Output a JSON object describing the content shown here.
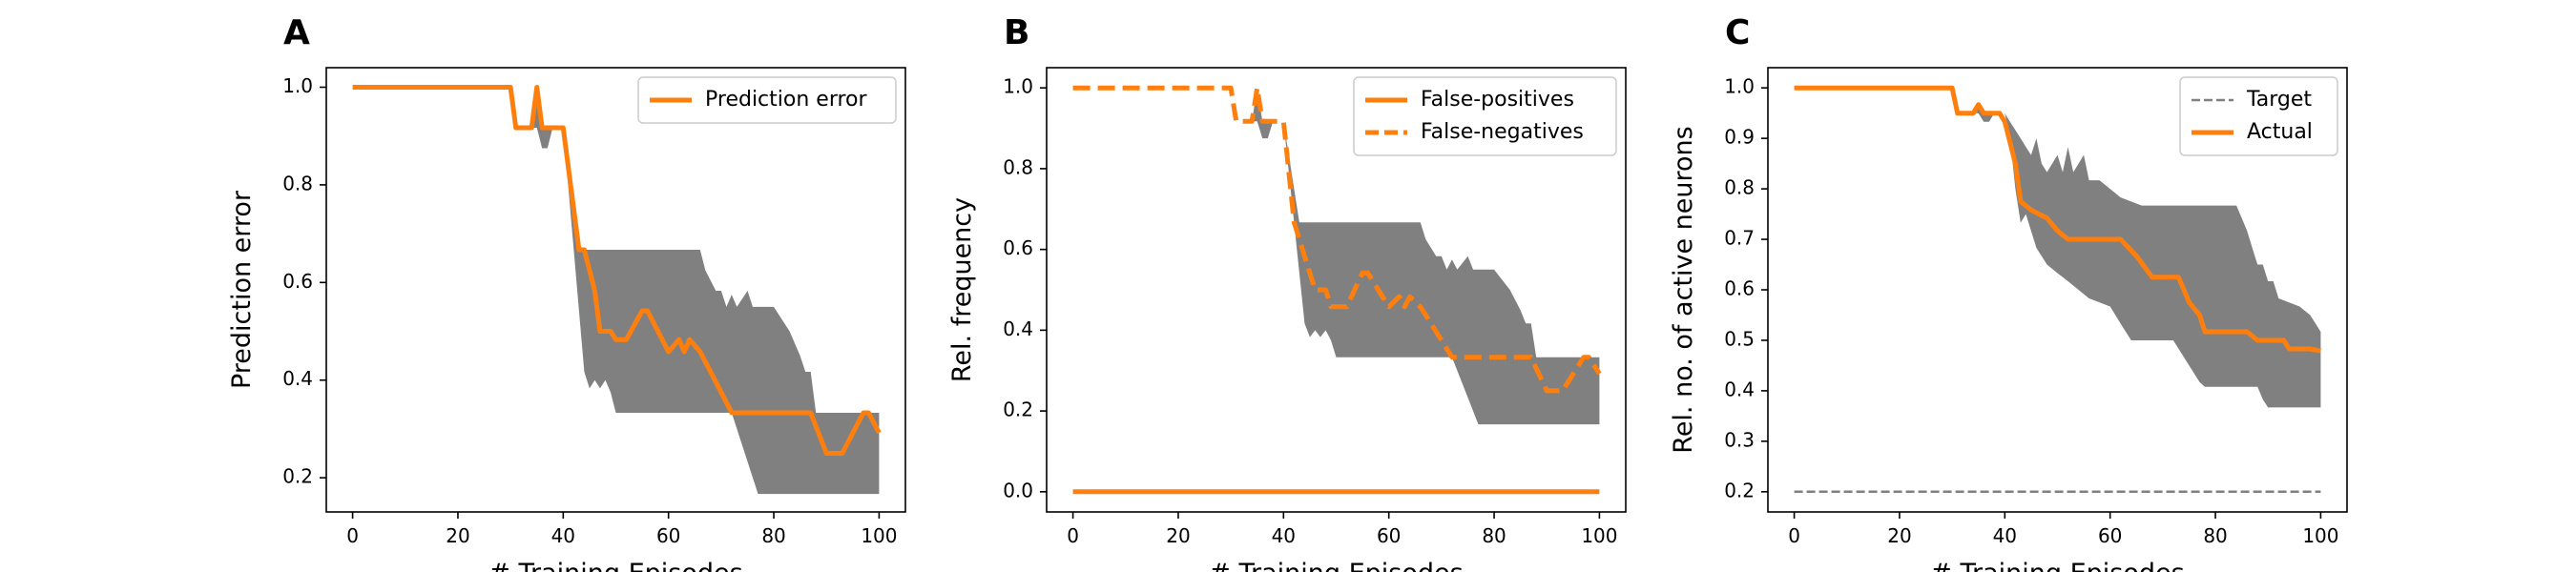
{
  "figure": {
    "panels": [
      {
        "letter": "A"
      },
      {
        "letter": "B"
      },
      {
        "letter": "C"
      }
    ]
  },
  "colors": {
    "orange": "#ff7f0e",
    "band": "#808080",
    "target": "#808080"
  },
  "chart_data": [
    {
      "type": "line",
      "xlabel": "# Training Episodes",
      "ylabel": "Prediction error",
      "xlim": [
        -5,
        105
      ],
      "ylim": [
        0.13,
        1.04
      ],
      "xticks": [
        0,
        20,
        40,
        60,
        80,
        100
      ],
      "yticks": [
        0.2,
        0.4,
        0.6,
        0.8,
        1.0
      ],
      "ytick_labels": [
        "0.2",
        "0.4",
        "0.6",
        "0.8",
        "1.0"
      ],
      "legend_position": "upper right",
      "series": [
        {
          "name": "Prediction error",
          "style": "solid",
          "points": [
            [
              0,
              1.0
            ],
            [
              30,
              1.0
            ],
            [
              31,
              0.917
            ],
            [
              34,
              0.917
            ],
            [
              35,
              1.0
            ],
            [
              36,
              0.917
            ],
            [
              37,
              0.917
            ],
            [
              38,
              0.917
            ],
            [
              40,
              0.917
            ],
            [
              43,
              0.667
            ],
            [
              44,
              0.667
            ],
            [
              46,
              0.583
            ],
            [
              47,
              0.5
            ],
            [
              49,
              0.5
            ],
            [
              50,
              0.483
            ],
            [
              52,
              0.483
            ],
            [
              55,
              0.542
            ],
            [
              56,
              0.542
            ],
            [
              58,
              0.5
            ],
            [
              60,
              0.458
            ],
            [
              62,
              0.483
            ],
            [
              63,
              0.458
            ],
            [
              64,
              0.483
            ],
            [
              66,
              0.458
            ],
            [
              68,
              0.417
            ],
            [
              70,
              0.375
            ],
            [
              72,
              0.333
            ],
            [
              87,
              0.333
            ],
            [
              90,
              0.25
            ],
            [
              93,
              0.25
            ],
            [
              97,
              0.333
            ],
            [
              98,
              0.333
            ],
            [
              100,
              0.292
            ]
          ]
        }
      ],
      "band": {
        "upper": [
          [
            0,
            1.0
          ],
          [
            30,
            1.0
          ],
          [
            31,
            0.917
          ],
          [
            34,
            0.917
          ],
          [
            35,
            1.0
          ],
          [
            36,
            0.917
          ],
          [
            40,
            0.917
          ],
          [
            43,
            0.667
          ],
          [
            66,
            0.667
          ],
          [
            67,
            0.625
          ],
          [
            69,
            0.583
          ],
          [
            70,
            0.583
          ],
          [
            71,
            0.55
          ],
          [
            72,
            0.575
          ],
          [
            73,
            0.55
          ],
          [
            75,
            0.583
          ],
          [
            76,
            0.55
          ],
          [
            80,
            0.55
          ],
          [
            83,
            0.5
          ],
          [
            85,
            0.45
          ],
          [
            86,
            0.417
          ],
          [
            87,
            0.417
          ],
          [
            88,
            0.333
          ],
          [
            100,
            0.333
          ]
        ],
        "lower": [
          [
            0,
            1.0
          ],
          [
            30,
            1.0
          ],
          [
            31,
            0.917
          ],
          [
            34,
            0.917
          ],
          [
            35,
            0.917
          ],
          [
            36,
            0.875
          ],
          [
            37,
            0.875
          ],
          [
            38,
            0.917
          ],
          [
            40,
            0.917
          ],
          [
            44,
            0.417
          ],
          [
            45,
            0.383
          ],
          [
            46,
            0.4
          ],
          [
            47,
            0.383
          ],
          [
            48,
            0.4
          ],
          [
            49,
            0.375
          ],
          [
            50,
            0.333
          ],
          [
            72,
            0.333
          ],
          [
            77,
            0.167
          ],
          [
            100,
            0.167
          ]
        ]
      }
    },
    {
      "type": "line",
      "xlabel": "# Training Episodes",
      "ylabel": "Rel. frequency",
      "xlim": [
        -5,
        105
      ],
      "ylim": [
        -0.05,
        1.05
      ],
      "xticks": [
        0,
        20,
        40,
        60,
        80,
        100
      ],
      "yticks": [
        0.0,
        0.2,
        0.4,
        0.6,
        0.8,
        1.0
      ],
      "ytick_labels": [
        "0.0",
        "0.2",
        "0.4",
        "0.6",
        "0.8",
        "1.0"
      ],
      "legend_position": "upper right",
      "series": [
        {
          "name": "False-positives",
          "style": "solid",
          "points": [
            [
              0,
              0.0
            ],
            [
              100,
              0.0
            ]
          ]
        },
        {
          "name": "False-negatives",
          "style": "dashed",
          "points": [
            [
              0,
              1.0
            ],
            [
              30,
              1.0
            ],
            [
              31,
              0.917
            ],
            [
              34,
              0.917
            ],
            [
              35,
              1.0
            ],
            [
              36,
              0.917
            ],
            [
              37,
              0.917
            ],
            [
              40,
              0.917
            ],
            [
              42,
              0.667
            ],
            [
              44,
              0.583
            ],
            [
              46,
              0.5
            ],
            [
              48,
              0.5
            ],
            [
              49,
              0.458
            ],
            [
              52,
              0.458
            ],
            [
              55,
              0.542
            ],
            [
              56,
              0.542
            ],
            [
              58,
              0.5
            ],
            [
              60,
              0.458
            ],
            [
              62,
              0.483
            ],
            [
              63,
              0.458
            ],
            [
              64,
              0.483
            ],
            [
              66,
              0.458
            ],
            [
              68,
              0.417
            ],
            [
              70,
              0.375
            ],
            [
              72,
              0.333
            ],
            [
              87,
              0.333
            ],
            [
              90,
              0.25
            ],
            [
              93,
              0.25
            ],
            [
              97,
              0.333
            ],
            [
              98,
              0.333
            ],
            [
              100,
              0.292
            ]
          ]
        }
      ],
      "band": {
        "upper": [
          [
            0,
            1.0
          ],
          [
            30,
            1.0
          ],
          [
            31,
            0.917
          ],
          [
            34,
            0.917
          ],
          [
            35,
            1.0
          ],
          [
            36,
            0.917
          ],
          [
            40,
            0.917
          ],
          [
            43,
            0.667
          ],
          [
            66,
            0.667
          ],
          [
            67,
            0.625
          ],
          [
            69,
            0.583
          ],
          [
            70,
            0.583
          ],
          [
            71,
            0.55
          ],
          [
            72,
            0.575
          ],
          [
            73,
            0.55
          ],
          [
            75,
            0.583
          ],
          [
            76,
            0.55
          ],
          [
            80,
            0.55
          ],
          [
            83,
            0.5
          ],
          [
            85,
            0.45
          ],
          [
            86,
            0.417
          ],
          [
            87,
            0.417
          ],
          [
            88,
            0.333
          ],
          [
            100,
            0.333
          ]
        ],
        "lower": [
          [
            0,
            1.0
          ],
          [
            30,
            1.0
          ],
          [
            31,
            0.917
          ],
          [
            34,
            0.917
          ],
          [
            35,
            0.917
          ],
          [
            36,
            0.875
          ],
          [
            37,
            0.875
          ],
          [
            38,
            0.917
          ],
          [
            40,
            0.917
          ],
          [
            44,
            0.417
          ],
          [
            45,
            0.383
          ],
          [
            46,
            0.4
          ],
          [
            47,
            0.383
          ],
          [
            48,
            0.4
          ],
          [
            49,
            0.375
          ],
          [
            50,
            0.333
          ],
          [
            72,
            0.333
          ],
          [
            77,
            0.167
          ],
          [
            100,
            0.167
          ]
        ]
      }
    },
    {
      "type": "line",
      "xlabel": "# Training Episodes",
      "ylabel": "Rel. no. of active neurons",
      "xlim": [
        -5,
        105
      ],
      "ylim": [
        0.16,
        1.04
      ],
      "xticks": [
        0,
        20,
        40,
        60,
        80,
        100
      ],
      "yticks": [
        0.2,
        0.3,
        0.4,
        0.5,
        0.6,
        0.7,
        0.8,
        0.9,
        1.0
      ],
      "ytick_labels": [
        "0.2",
        "0.3",
        "0.4",
        "0.5",
        "0.6",
        "0.7",
        "0.8",
        "0.9",
        "1.0"
      ],
      "legend_position": "upper right",
      "series": [
        {
          "name": "Target",
          "style": "dashed-thin",
          "points": [
            [
              0,
              0.2
            ],
            [
              100,
              0.2
            ]
          ]
        },
        {
          "name": "Actual",
          "style": "solid",
          "points": [
            [
              0,
              1.0
            ],
            [
              30,
              1.0
            ],
            [
              31,
              0.95
            ],
            [
              34,
              0.95
            ],
            [
              35,
              0.967
            ],
            [
              36,
              0.95
            ],
            [
              39,
              0.95
            ],
            [
              40,
              0.933
            ],
            [
              42,
              0.85
            ],
            [
              43,
              0.775
            ],
            [
              45,
              0.758
            ],
            [
              48,
              0.742
            ],
            [
              50,
              0.717
            ],
            [
              52,
              0.7
            ],
            [
              62,
              0.7
            ],
            [
              65,
              0.667
            ],
            [
              68,
              0.625
            ],
            [
              73,
              0.625
            ],
            [
              75,
              0.575
            ],
            [
              77,
              0.55
            ],
            [
              78,
              0.517
            ],
            [
              86,
              0.517
            ],
            [
              88,
              0.5
            ],
            [
              93,
              0.5
            ],
            [
              94,
              0.483
            ],
            [
              98,
              0.483
            ],
            [
              100,
              0.479
            ]
          ]
        }
      ],
      "band": {
        "upper": [
          [
            0,
            1.0
          ],
          [
            30,
            1.0
          ],
          [
            31,
            0.95
          ],
          [
            34,
            0.95
          ],
          [
            35,
            0.967
          ],
          [
            36,
            0.95
          ],
          [
            40,
            0.95
          ],
          [
            41,
            0.933
          ],
          [
            43,
            0.9
          ],
          [
            44,
            0.883
          ],
          [
            45,
            0.867
          ],
          [
            46,
            0.9
          ],
          [
            47,
            0.85
          ],
          [
            48,
            0.833
          ],
          [
            50,
            0.867
          ],
          [
            51,
            0.833
          ],
          [
            52,
            0.883
          ],
          [
            53,
            0.833
          ],
          [
            55,
            0.867
          ],
          [
            56,
            0.817
          ],
          [
            58,
            0.817
          ],
          [
            62,
            0.783
          ],
          [
            66,
            0.767
          ],
          [
            84,
            0.767
          ],
          [
            86,
            0.717
          ],
          [
            87,
            0.683
          ],
          [
            88,
            0.65
          ],
          [
            89,
            0.65
          ],
          [
            90,
            0.617
          ],
          [
            91,
            0.617
          ],
          [
            92,
            0.583
          ],
          [
            96,
            0.567
          ],
          [
            98,
            0.55
          ],
          [
            100,
            0.517
          ]
        ],
        "lower": [
          [
            0,
            1.0
          ],
          [
            30,
            1.0
          ],
          [
            31,
            0.95
          ],
          [
            34,
            0.95
          ],
          [
            35,
            0.95
          ],
          [
            36,
            0.933
          ],
          [
            37,
            0.933
          ],
          [
            38,
            0.95
          ],
          [
            40,
            0.95
          ],
          [
            41,
            0.9
          ],
          [
            42,
            0.8
          ],
          [
            43,
            0.733
          ],
          [
            44,
            0.75
          ],
          [
            46,
            0.683
          ],
          [
            48,
            0.65
          ],
          [
            50,
            0.633
          ],
          [
            52,
            0.617
          ],
          [
            56,
            0.583
          ],
          [
            60,
            0.567
          ],
          [
            62,
            0.533
          ],
          [
            64,
            0.5
          ],
          [
            72,
            0.5
          ],
          [
            75,
            0.45
          ],
          [
            77,
            0.417
          ],
          [
            78,
            0.408
          ],
          [
            88,
            0.408
          ],
          [
            89,
            0.383
          ],
          [
            90,
            0.367
          ],
          [
            100,
            0.367
          ]
        ]
      }
    }
  ]
}
